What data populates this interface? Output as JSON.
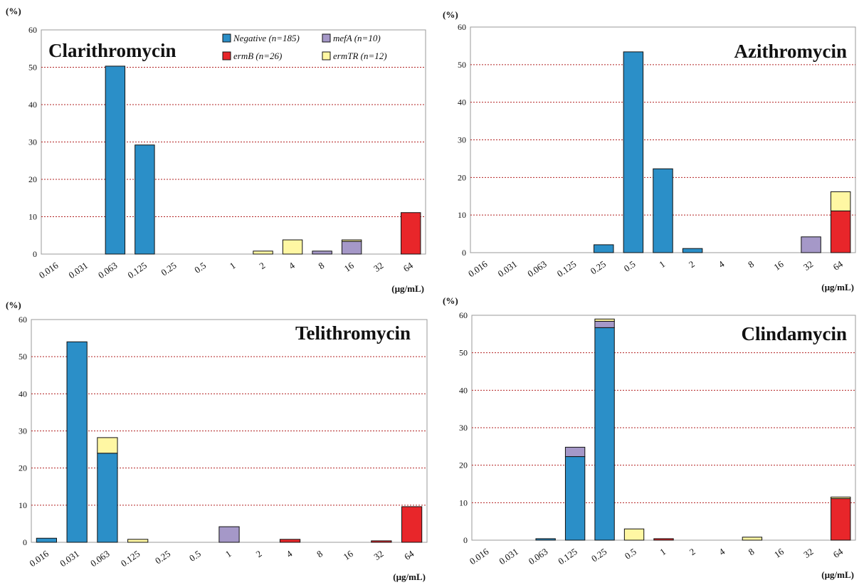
{
  "chart_data": [
    {
      "type": "bar",
      "stacked": true,
      "title": "Clarithromycin",
      "ylabel": "(%)",
      "unit": "(µg/mL)",
      "ylim": [
        0,
        60
      ],
      "yticks": [
        0,
        10,
        20,
        30,
        40,
        50,
        60
      ],
      "grid": "horizontal dotted",
      "legend_position": "top-right",
      "categories": [
        "0.016",
        "0.031",
        "0.063",
        "0.125",
        "0.25",
        "0.5",
        "1",
        "2",
        "4",
        "8",
        "16",
        "32",
        "64"
      ],
      "series": [
        {
          "name": "Negative (n=185)",
          "values": [
            0,
            0,
            50.3,
            29.2,
            0,
            0,
            0,
            0,
            0,
            0,
            0,
            0,
            0
          ]
        },
        {
          "name": "ermB (n=26)",
          "values": [
            0,
            0,
            0,
            0,
            0,
            0,
            0,
            0,
            0,
            0,
            0,
            0,
            11.1
          ]
        },
        {
          "name": "mefA (n=10)",
          "values": [
            0,
            0,
            0,
            0,
            0,
            0,
            0,
            0,
            0,
            0.8,
            3.4,
            0,
            0
          ]
        },
        {
          "name": "ermTR (n=12)",
          "values": [
            0,
            0,
            0,
            0,
            0,
            0,
            0,
            0.8,
            3.8,
            0,
            0.4,
            0,
            0
          ]
        }
      ]
    },
    {
      "type": "bar",
      "stacked": true,
      "title": "Azithromycin",
      "ylabel": "(%)",
      "unit": "(µg/mL)",
      "ylim": [
        0,
        60
      ],
      "yticks": [
        0,
        10,
        20,
        30,
        40,
        50,
        60
      ],
      "grid": "horizontal dotted",
      "categories": [
        "0.016",
        "0.031",
        "0.063",
        "0.125",
        "0.25",
        "0.5",
        "1",
        "2",
        "4",
        "8",
        "16",
        "32",
        "64"
      ],
      "series": [
        {
          "name": "Negative (n=185)",
          "values": [
            0,
            0,
            0,
            0,
            2.1,
            53.4,
            22.3,
            1.1,
            0,
            0,
            0,
            0,
            0
          ]
        },
        {
          "name": "ermB (n=26)",
          "values": [
            0,
            0,
            0,
            0,
            0,
            0,
            0,
            0,
            0,
            0,
            0,
            0,
            11.1
          ]
        },
        {
          "name": "mefA (n=10)",
          "values": [
            0,
            0,
            0,
            0,
            0,
            0,
            0,
            0,
            0,
            0,
            0,
            4.2,
            0
          ]
        },
        {
          "name": "ermTR (n=12)",
          "values": [
            0,
            0,
            0,
            0,
            0,
            0,
            0,
            0,
            0,
            0,
            0,
            0,
            5.1
          ]
        }
      ]
    },
    {
      "type": "bar",
      "stacked": true,
      "title": "Telithromycin",
      "ylabel": "(%)",
      "unit": "(µg/mL)",
      "ylim": [
        0,
        60
      ],
      "yticks": [
        0,
        10,
        20,
        30,
        40,
        50,
        60
      ],
      "grid": "horizontal dotted",
      "categories": [
        "0.016",
        "0.031",
        "0.063",
        "0.125",
        "0.25",
        "0.5",
        "1",
        "2",
        "4",
        "8",
        "16",
        "32",
        "64"
      ],
      "series": [
        {
          "name": "Negative (n=185)",
          "values": [
            1.1,
            54.0,
            24.0,
            0,
            0,
            0,
            0,
            0,
            0,
            0,
            0,
            0,
            0
          ]
        },
        {
          "name": "ermB (n=26)",
          "values": [
            0,
            0,
            0,
            0,
            0,
            0,
            0,
            0,
            0.8,
            0,
            0,
            0.4,
            9.6
          ]
        },
        {
          "name": "mefA (n=10)",
          "values": [
            0,
            0,
            0,
            0,
            0,
            0,
            4.2,
            0,
            0,
            0,
            0,
            0,
            0
          ]
        },
        {
          "name": "ermTR (n=12)",
          "values": [
            0,
            0,
            4.2,
            0.8,
            0,
            0,
            0,
            0,
            0,
            0,
            0,
            0,
            0
          ]
        }
      ]
    },
    {
      "type": "bar",
      "stacked": true,
      "title": "Clindamycin",
      "ylabel": "(%)",
      "unit": "(µg/mL)",
      "ylim": [
        0,
        60
      ],
      "yticks": [
        0,
        10,
        20,
        30,
        40,
        50,
        60
      ],
      "grid": "horizontal dotted",
      "categories": [
        "0.016",
        "0.031",
        "0.063",
        "0.125",
        "0.25",
        "0.5",
        "1",
        "2",
        "4",
        "8",
        "16",
        "32",
        "64"
      ],
      "series": [
        {
          "name": "Negative (n=185)",
          "values": [
            0,
            0,
            0.4,
            22.3,
            56.7,
            0,
            0,
            0,
            0,
            0,
            0,
            0,
            0
          ]
        },
        {
          "name": "ermB (n=26)",
          "values": [
            0,
            0,
            0,
            0,
            0,
            0,
            0.4,
            0,
            0,
            0,
            0,
            0,
            11.1
          ]
        },
        {
          "name": "mefA (n=10)",
          "values": [
            0,
            0,
            0,
            2.5,
            1.7,
            0,
            0,
            0,
            0,
            0,
            0,
            0,
            0
          ]
        },
        {
          "name": "ermTR (n=12)",
          "values": [
            0,
            0,
            0,
            0,
            0.6,
            3.0,
            0,
            0,
            0,
            0.8,
            0,
            0,
            0.4
          ]
        }
      ]
    }
  ],
  "colors": {
    "Negative (n=185)": "#2b8fc8",
    "ermB (n=26)": "#e8262a",
    "mefA (n=10)": "#a598c8",
    "ermTR (n=12)": "#fff7a3",
    "grid": "#b22222"
  },
  "legend": [
    "Negative (n=185)",
    "mefA (n=10)",
    "ermB (n=26)",
    "ermTR (n=12)"
  ]
}
